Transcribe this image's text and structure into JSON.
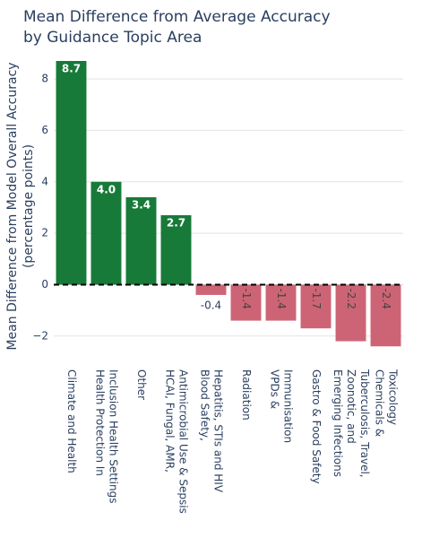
{
  "chart_data": {
    "type": "bar",
    "title": [
      "Mean Difference from Average Accuracy",
      "by Guidance Topic Area"
    ],
    "y_label": [
      "Mean Difference from Model Overall Accuracy",
      "(percentage points)"
    ],
    "categories": [
      [
        "Climate and Health"
      ],
      [
        "Health Protection In",
        "Inclusion Health Settings"
      ],
      [
        "Other"
      ],
      [
        "HCAI, Fungal, AMR,",
        "Antimicrobial Use & Sepsis"
      ],
      [
        "Blood Safety,",
        "Hepatitis, STIs and HIV"
      ],
      [
        "Radiation"
      ],
      [
        "VPDs &",
        "Immunisation"
      ],
      [
        "Gastro & Food Safety"
      ],
      [
        "Emerging Infections",
        "Zoonotic, and",
        "Tuberculosis, Travel,"
      ],
      [
        "Chemicals &",
        "Toxicology"
      ]
    ],
    "values": [
      8.7,
      4.0,
      3.4,
      2.7,
      -0.4,
      -1.4,
      -1.4,
      -1.7,
      -2.2,
      -2.4
    ],
    "value_labels": [
      "8.7",
      "4.0",
      "3.4",
      "2.7",
      "-0.4",
      "-1.4",
      "-1.4",
      "-1.7",
      "-2.2",
      "-2.4"
    ],
    "positive_color": "#177a38",
    "negative_color": "#cd6475",
    "ylim": [
      -2.6,
      8.7
    ],
    "yticks": [
      {
        "value": -2,
        "label": "−2"
      },
      0,
      2,
      4,
      6,
      8
    ],
    "grid": true
  }
}
